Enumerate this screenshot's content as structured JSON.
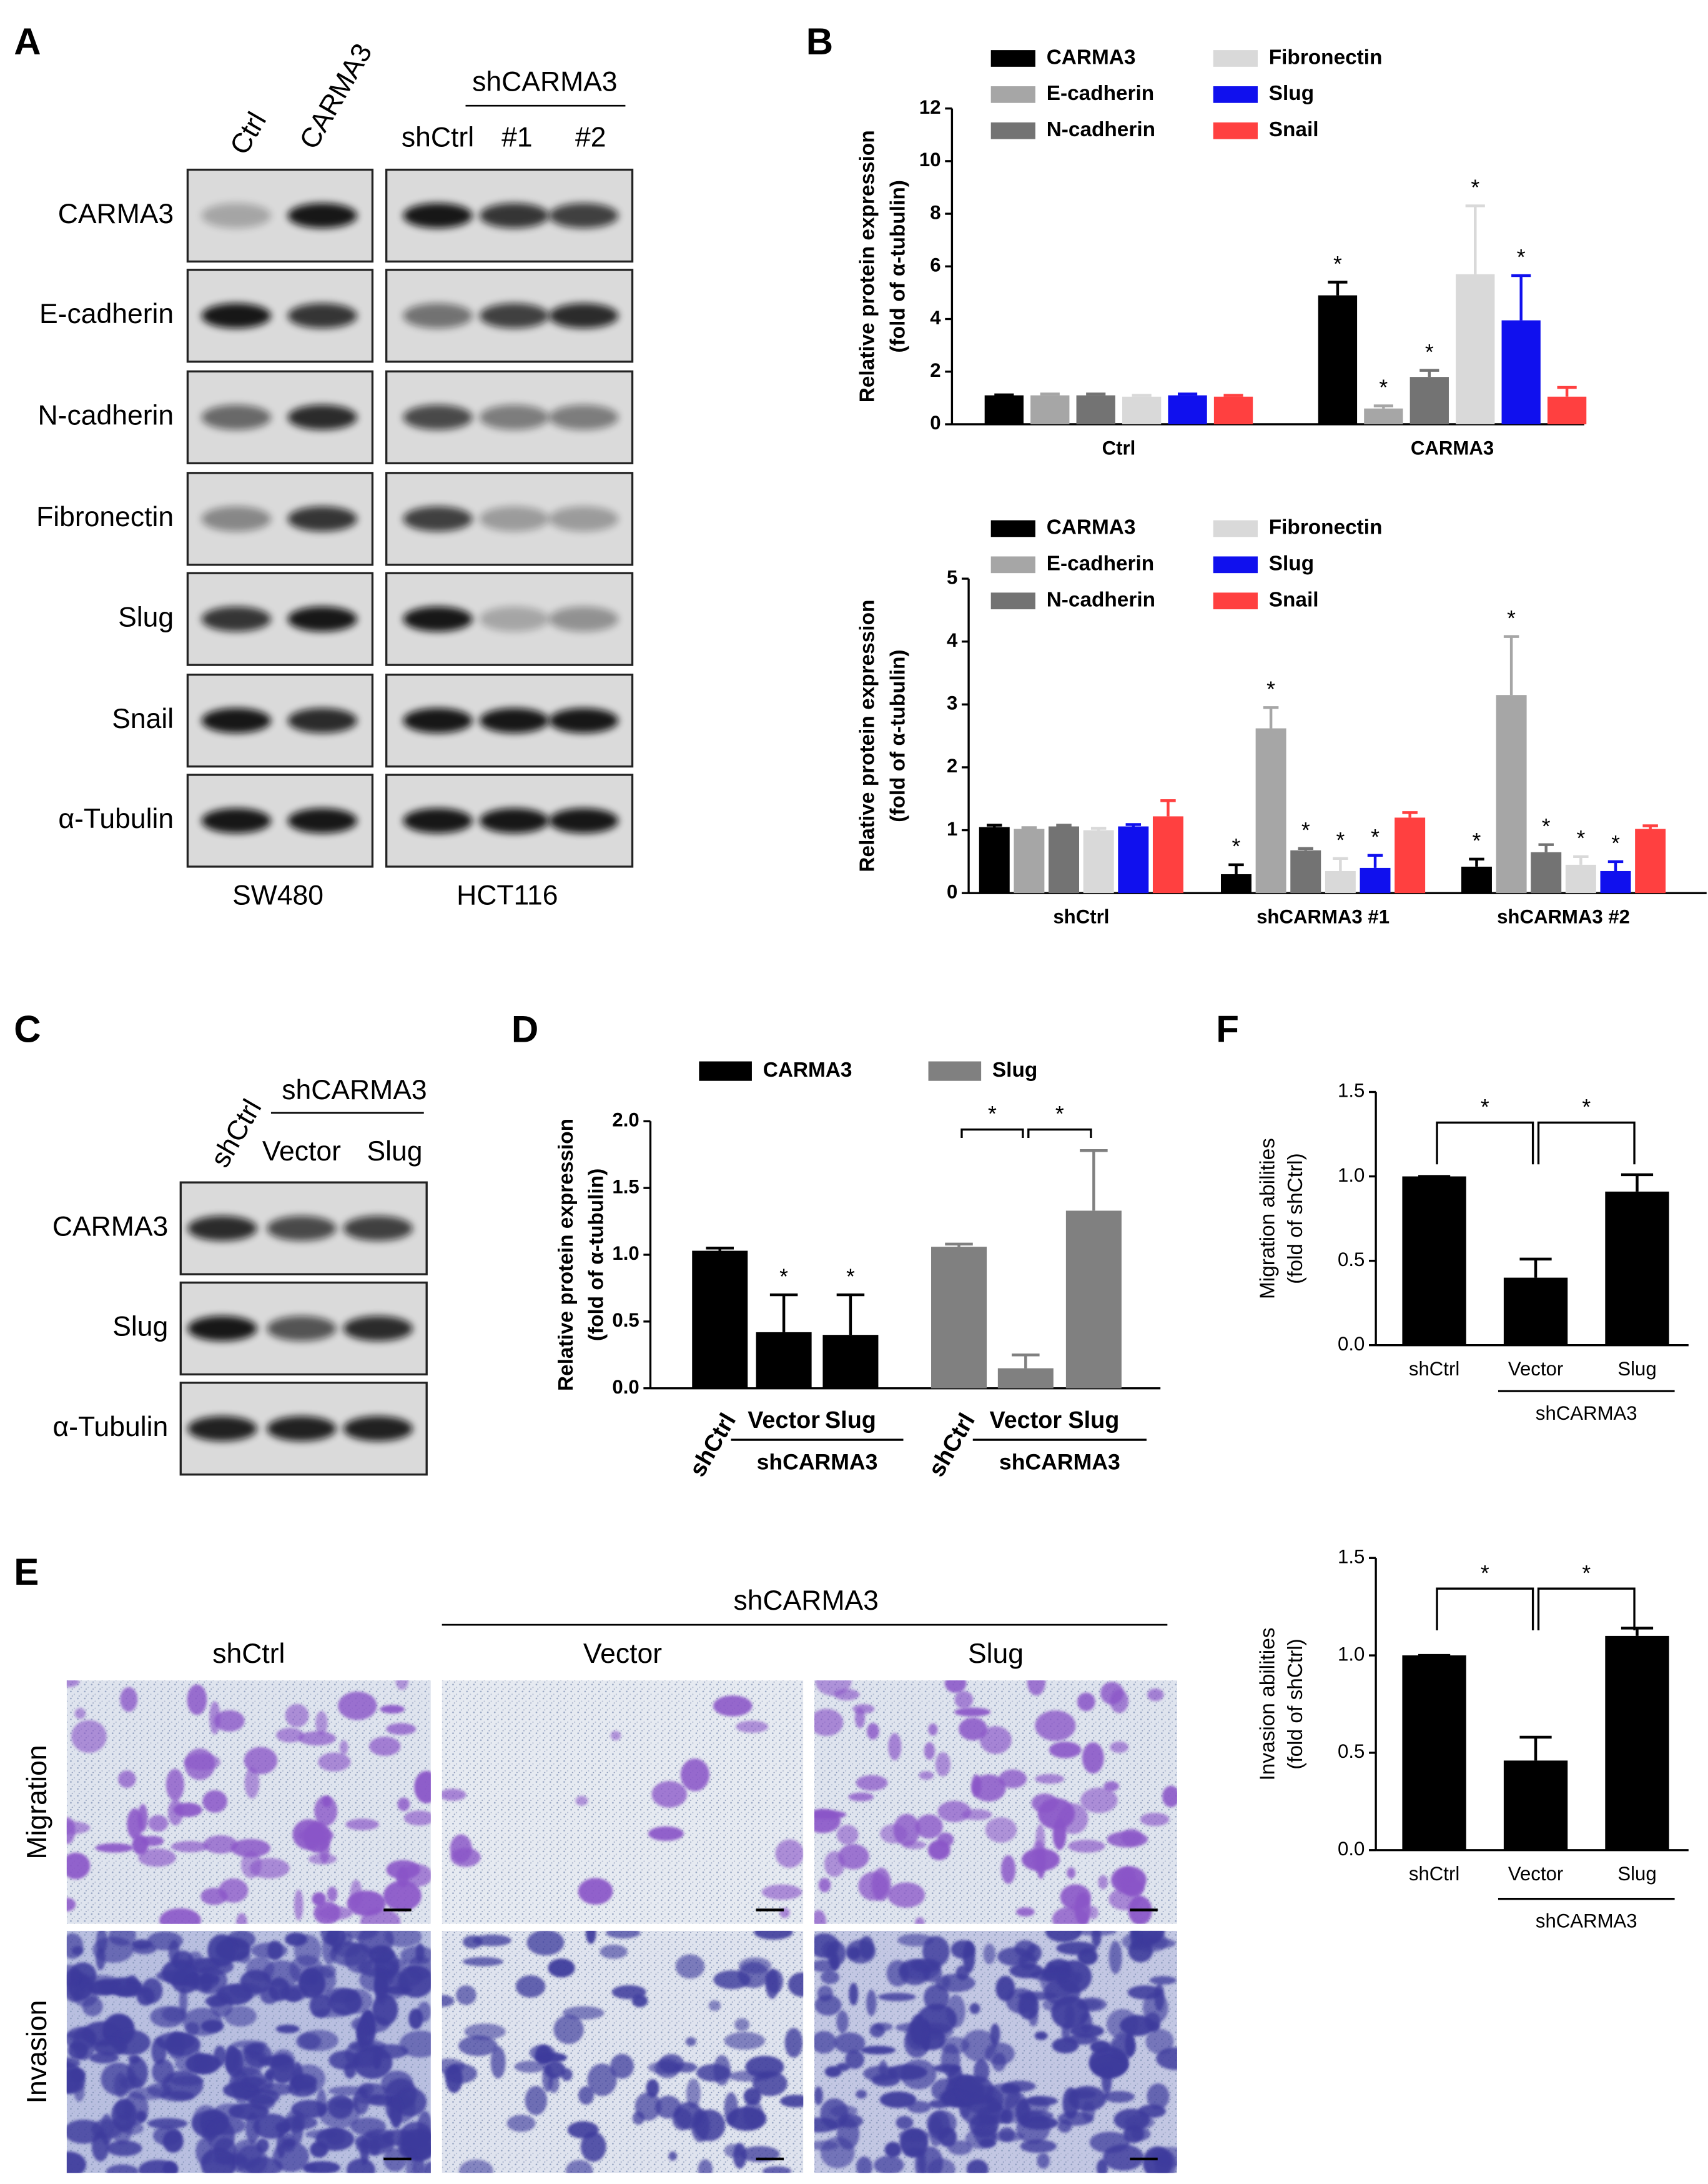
{
  "letters": [
    "A",
    "B",
    "C",
    "D",
    "E",
    "F"
  ],
  "panel_a": {
    "lanes": [
      "Ctrl",
      "CARMA3"
    ],
    "group": "shCARMA3",
    "group_lanes": [
      "shCtrl",
      "#1",
      "#2"
    ],
    "rows": [
      "CARMA3",
      "E-cadherin",
      "N-cadherin",
      "Fibronectin",
      "Slug",
      "Snail",
      "α-Tubulin"
    ],
    "cell_lines": [
      "SW480",
      "HCT116"
    ]
  },
  "panel_c": {
    "lanes": [
      "shCtrl"
    ],
    "group": "shCARMA3",
    "group_lanes": [
      "Vector",
      "Slug"
    ],
    "rows": [
      "CARMA3",
      "Slug",
      "α-Tubulin"
    ]
  },
  "panel_e": {
    "group": "shCARMA3",
    "columns": [
      "shCtrl",
      "Vector",
      "Slug"
    ],
    "rows": [
      "Migration",
      "Invasion"
    ]
  },
  "chart_data": [
    {
      "type": "bar",
      "ylabel": [
        "Relative protein expression",
        "(fold of α-tubulin)"
      ],
      "categories": [
        "Ctrl",
        "CARMA3"
      ],
      "series": [
        {
          "name": "CARMA3",
          "color": "#000000",
          "values": [
            1.1,
            4.9
          ],
          "errors": [
            0.02,
            0.5
          ],
          "annotations": [
            null,
            "*"
          ]
        },
        {
          "name": "E-cadherin",
          "color": "#a6a6a6",
          "values": [
            1.1,
            0.6
          ],
          "errors": [
            0.05,
            0.1
          ],
          "annotations": [
            null,
            "*"
          ]
        },
        {
          "name": "N-cadherin",
          "color": "#737373",
          "values": [
            1.1,
            1.8
          ],
          "errors": [
            0.05,
            0.25
          ],
          "annotations": [
            null,
            "*"
          ]
        },
        {
          "name": "Fibronectin",
          "color": "#d9d9d9",
          "values": [
            1.05,
            5.7
          ],
          "errors": [
            0.05,
            2.6
          ],
          "annotations": [
            null,
            "*"
          ]
        },
        {
          "name": "Slug",
          "color": "#1010ee",
          "values": [
            1.1,
            3.95
          ],
          "errors": [
            0.05,
            1.7
          ],
          "annotations": [
            null,
            "*"
          ]
        },
        {
          "name": "Snail",
          "color": "#ff4040",
          "values": [
            1.05,
            1.05
          ],
          "errors": [
            0.05,
            0.35
          ],
          "annotations": [
            null,
            null
          ]
        }
      ],
      "ylim": [
        0,
        12
      ],
      "yticks": [
        0,
        2,
        4,
        6,
        8,
        10,
        12
      ]
    },
    {
      "type": "bar",
      "ylabel": [
        "Relative protein expression",
        "(fold of α-tubulin)"
      ],
      "categories": [
        "shCtrl",
        "shCARMA3 #1",
        "shCARMA3 #2"
      ],
      "series": [
        {
          "name": "CARMA3",
          "color": "#000000",
          "values": [
            1.05,
            0.3,
            0.42
          ],
          "errors": [
            0.03,
            0.15,
            0.12
          ],
          "annotations": [
            null,
            "*",
            "*"
          ]
        },
        {
          "name": "E-cadherin",
          "color": "#a6a6a6",
          "values": [
            1.02,
            2.62,
            3.15
          ],
          "errors": [
            0.02,
            0.33,
            0.93
          ],
          "annotations": [
            null,
            "*",
            "*"
          ]
        },
        {
          "name": "N-cadherin",
          "color": "#737373",
          "values": [
            1.06,
            0.68,
            0.65
          ],
          "errors": [
            0.02,
            0.03,
            0.12
          ],
          "annotations": [
            null,
            "*",
            "*"
          ]
        },
        {
          "name": "Fibronectin",
          "color": "#d9d9d9",
          "values": [
            1.0,
            0.35,
            0.45
          ],
          "errors": [
            0.03,
            0.2,
            0.13
          ],
          "annotations": [
            null,
            "*",
            "*"
          ]
        },
        {
          "name": "Slug",
          "color": "#1010ee",
          "values": [
            1.06,
            0.4,
            0.35
          ],
          "errors": [
            0.03,
            0.2,
            0.15
          ],
          "annotations": [
            null,
            "*",
            "*"
          ]
        },
        {
          "name": "Snail",
          "color": "#ff4040",
          "values": [
            1.22,
            1.2,
            1.02
          ],
          "errors": [
            0.25,
            0.08,
            0.05
          ],
          "annotations": [
            null,
            null,
            null
          ]
        }
      ],
      "ylim": [
        0,
        5
      ],
      "yticks": [
        0,
        1,
        2,
        3,
        4,
        5
      ]
    },
    {
      "type": "bar",
      "grouping": "series",
      "ylabel": [
        "Relative protein expression",
        "(fold of α-tubulin)"
      ],
      "categories": [
        "shCtrl",
        "Vector",
        "Slug"
      ],
      "group_label": "shCARMA3",
      "series": [
        {
          "name": "CARMA3",
          "color": "#000000",
          "values": [
            1.03,
            0.42,
            0.4
          ],
          "errors": [
            0.02,
            0.28,
            0.3
          ],
          "annotations": [
            null,
            "*",
            "*"
          ]
        },
        {
          "name": "Slug",
          "color": "#808080",
          "values": [
            1.06,
            0.15,
            1.33
          ],
          "errors": [
            0.02,
            0.1,
            0.45
          ],
          "brackets": [
            {
              "from": "shCtrl",
              "to": "Vector",
              "label": "*"
            },
            {
              "from": "Vector",
              "to": "Slug",
              "label": "*"
            }
          ]
        }
      ],
      "ylim": [
        0,
        2
      ],
      "yticks": [
        {
          "value": 0,
          "label": "0.0"
        },
        0.5,
        {
          "value": 1,
          "label": "1.0"
        },
        1.5,
        {
          "value": 2,
          "label": "2.0"
        }
      ]
    },
    {
      "type": "bar",
      "ylabel": [
        "Migration abilities",
        "(fold of shCtrl)"
      ],
      "categories": [
        "shCtrl",
        "Vector",
        "Slug"
      ],
      "group_label": "shCARMA3",
      "values": [
        1.0,
        0.4,
        0.91
      ],
      "errors": [
        0,
        0.11,
        0.1
      ],
      "color": "#000000",
      "brackets": [
        {
          "from": "shCtrl",
          "to": "Vector",
          "label": "*"
        },
        {
          "from": "Vector",
          "to": "Slug",
          "label": "*"
        }
      ],
      "ylim": [
        0,
        1.5
      ],
      "yticks": [
        {
          "value": 0,
          "label": "0.0"
        },
        0.5,
        {
          "value": 1,
          "label": "1.0"
        },
        1.5
      ]
    },
    {
      "type": "bar",
      "ylabel": [
        "Invasion abilities",
        "(fold of shCtrl)"
      ],
      "categories": [
        "shCtrl",
        "Vector",
        "Slug"
      ],
      "group_label": "shCARMA3",
      "values": [
        1.0,
        0.46,
        1.1
      ],
      "errors": [
        0,
        0.12,
        0.04
      ],
      "color": "#000000",
      "brackets": [
        {
          "from": "shCtrl",
          "to": "Vector",
          "label": "*"
        },
        {
          "from": "Vector",
          "to": "Slug",
          "label": "*"
        }
      ],
      "ylim": [
        0,
        1.5
      ],
      "yticks": [
        {
          "value": 0,
          "label": "0.0"
        },
        0.5,
        {
          "value": 1,
          "label": "1.0"
        },
        1.5
      ]
    }
  ]
}
